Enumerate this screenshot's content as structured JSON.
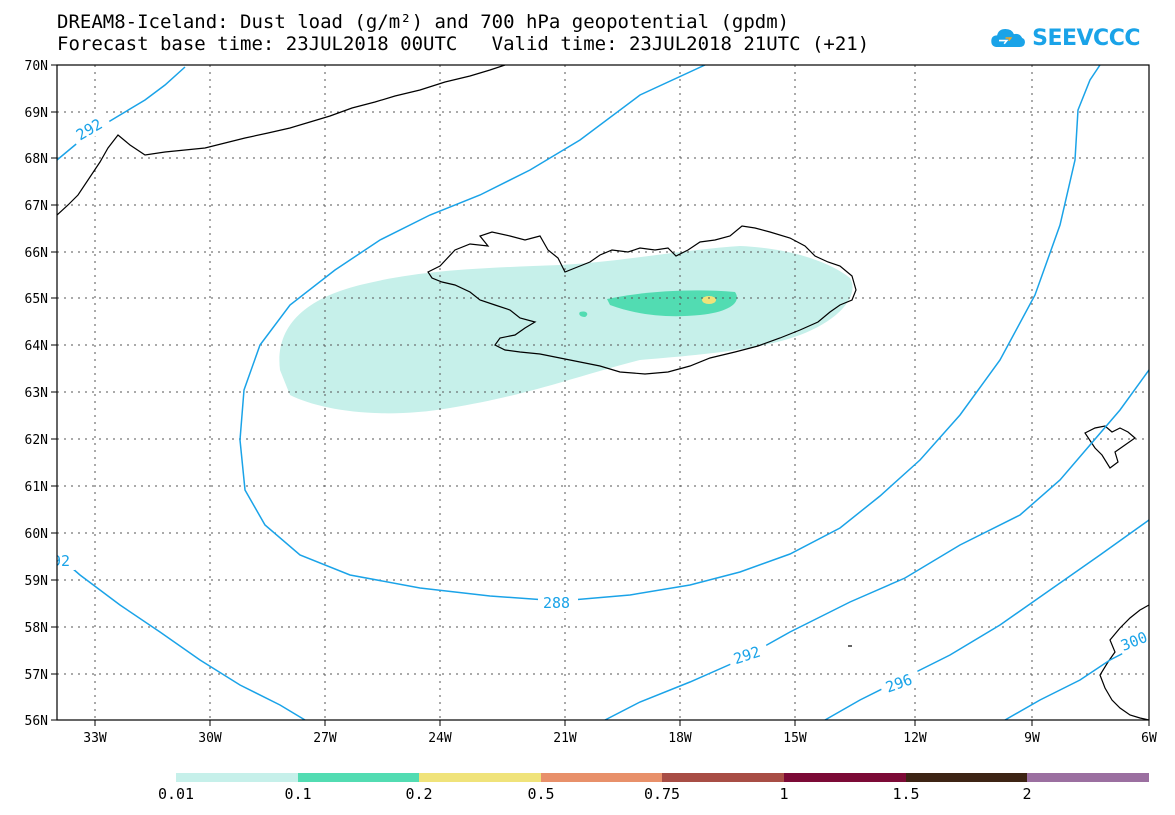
{
  "title": {
    "line1": "DREAM8-Iceland: Dust load (g/m²) and 700 hPa geopotential (gpdm)",
    "line2": "Forecast base time: 23JUL2018 00UTC   Valid time: 23JUL2018 21UTC (+21)"
  },
  "logo": {
    "text": "SEEVCCC",
    "icon": "cloud-icon",
    "color": "#1aa3e8"
  },
  "map": {
    "lat_labels": [
      "70N",
      "69N",
      "68N",
      "67N",
      "66N",
      "65N",
      "64N",
      "63N",
      "62N",
      "61N",
      "60N",
      "59N",
      "58N",
      "57N",
      "56N"
    ],
    "lon_labels": [
      "33W",
      "30W",
      "27W",
      "24W",
      "21W",
      "18W",
      "15W",
      "12W",
      "9W",
      "6W"
    ],
    "lat_range": [
      56,
      70
    ],
    "lon_range": [
      -34.5,
      -6
    ],
    "contour_color": "#1aa3e8",
    "contour_labels": [
      "292",
      "92",
      "288",
      "292",
      "296",
      "300"
    ]
  },
  "colorbar": {
    "labels": [
      "0.01",
      "0.1",
      "0.2",
      "0.5",
      "0.75",
      "1",
      "1.5",
      "2"
    ],
    "colors": [
      "#c6f0ea",
      "#52dcb2",
      "#f0e37a",
      "#e8906a",
      "#a84d45",
      "#7c0a36",
      "#3d2414",
      "#9b6fa0"
    ]
  }
}
